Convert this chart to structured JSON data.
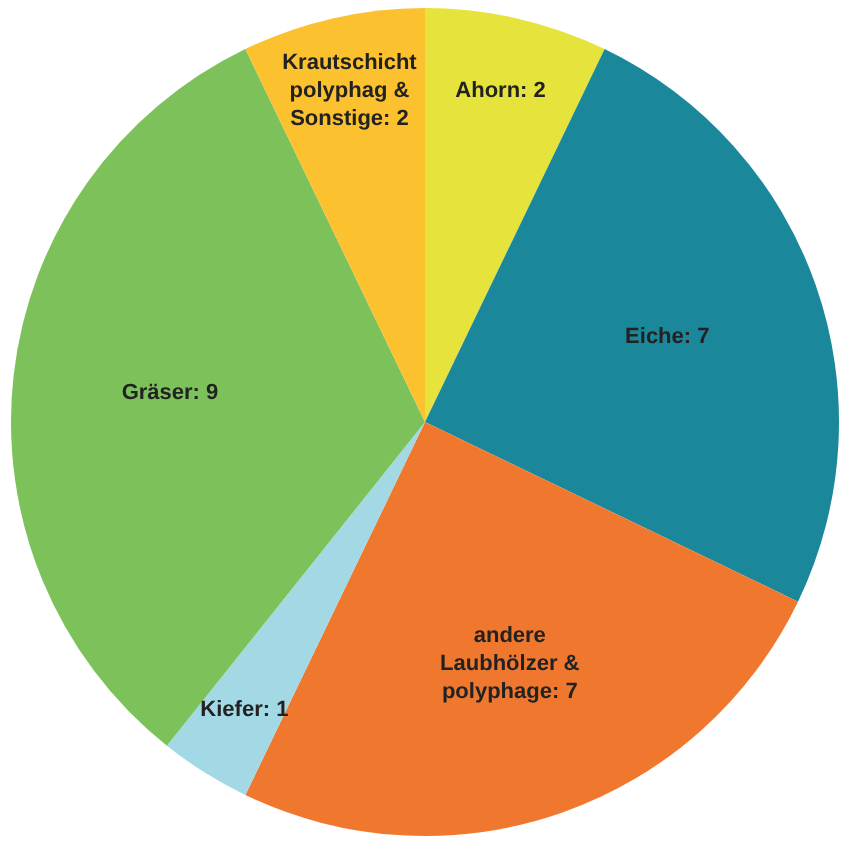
{
  "chart_data": {
    "type": "pie",
    "categories": [
      "Ahorn",
      "Eiche",
      "andere Laubhölzer & polyphage",
      "Kiefer",
      "Gräser",
      "Krautschicht polyphag & Sonstige"
    ],
    "values": [
      2,
      7,
      7,
      1,
      9,
      2
    ],
    "colors": [
      "#e6e33c",
      "#1b879b",
      "#f0782e",
      "#a2d9e5",
      "#7cc159",
      "#fbc12e"
    ],
    "value_labels": [
      ": 2",
      ": 7",
      ": 7",
      ": 1",
      ": 9",
      ": 2"
    ],
    "legend": false
  }
}
